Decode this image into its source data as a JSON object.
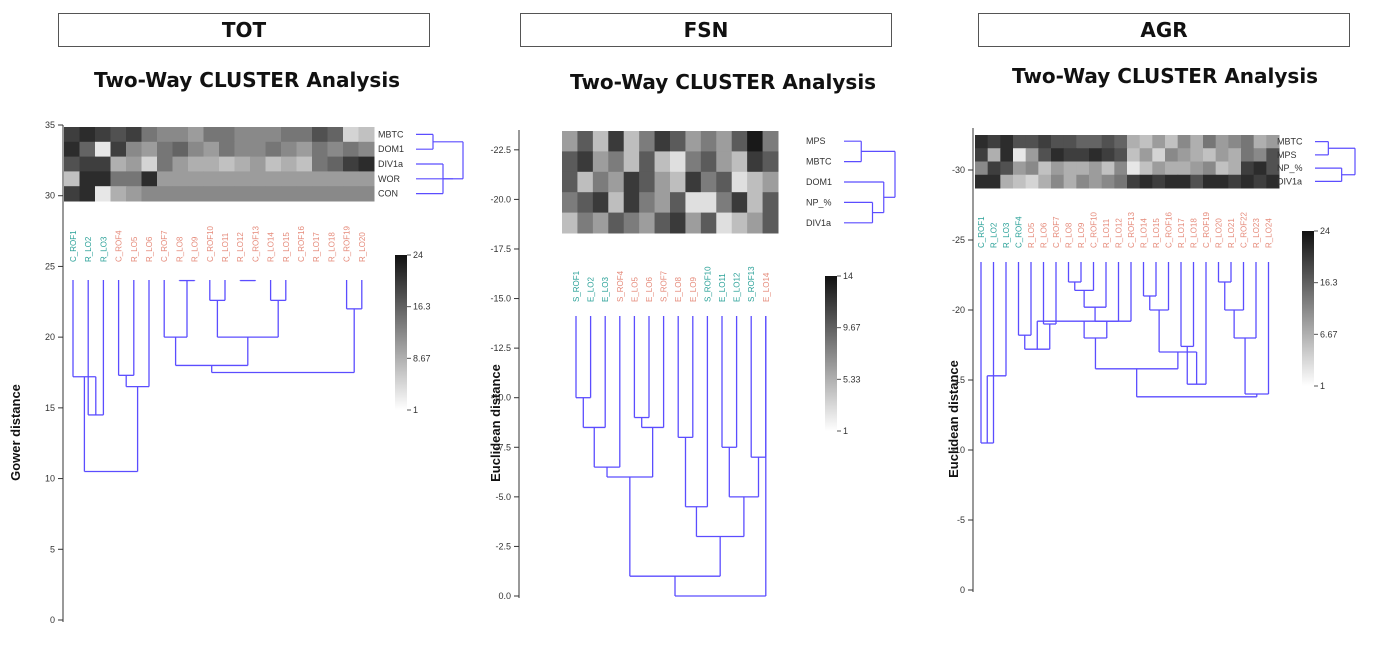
{
  "panels": [
    {
      "header": "TOT",
      "subtitle": "Two-Way CLUSTER Analysis"
    },
    {
      "header": "FSN",
      "subtitle": "Two-Way CLUSTER Analysis"
    },
    {
      "header": "AGR",
      "subtitle": "Two-Way CLUSTER Analysis"
    }
  ],
  "chart_data": [
    {
      "type": "heatmap",
      "title": "Two-Way CLUSTER Analysis",
      "ylabel": "Gower distance",
      "yticks": [
        0,
        5,
        10,
        15,
        20,
        25,
        30,
        35
      ],
      "ylim": [
        0,
        35
      ],
      "variables": [
        "MBTC",
        "DOM1",
        "DIV1a",
        "WOR",
        "CON"
      ],
      "n_samples": 20,
      "colorbar": {
        "min": 1,
        "max": 24,
        "ticks": [
          "24",
          "16.3",
          "8.67",
          "1"
        ]
      },
      "sample_label_colors": {
        "group_a": "#2aa198",
        "group_b": "#e58a7a"
      },
      "heat": [
        [
          20,
          22,
          20,
          18,
          20,
          14,
          12,
          12,
          10,
          14,
          14,
          12,
          12,
          12,
          14,
          14,
          18,
          16,
          4,
          6
        ],
        [
          22,
          16,
          2,
          20,
          12,
          10,
          14,
          16,
          12,
          10,
          14,
          12,
          12,
          14,
          12,
          10,
          14,
          12,
          14,
          12
        ],
        [
          18,
          20,
          20,
          8,
          10,
          4,
          14,
          10,
          8,
          8,
          6,
          8,
          10,
          6,
          8,
          6,
          14,
          16,
          20,
          22
        ],
        [
          6,
          22,
          22,
          14,
          14,
          22,
          10,
          10,
          10,
          10,
          10,
          10,
          10,
          10,
          10,
          10,
          10,
          10,
          10,
          10
        ],
        [
          20,
          22,
          2,
          8,
          10,
          12,
          12,
          12,
          12,
          12,
          12,
          12,
          12,
          12,
          12,
          12,
          12,
          12,
          12,
          12
        ]
      ],
      "dendrogram_merges": [
        [
          7,
          8,
          24
        ],
        [
          9,
          10,
          22.6
        ],
        [
          11,
          12,
          24
        ],
        [
          13,
          14,
          22.6
        ],
        [
          18,
          19,
          22
        ],
        [
          6,
          20,
          20
        ],
        [
          21,
          23,
          20
        ],
        [
          17,
          27,
          24
        ],
        [
          3,
          4,
          17.3
        ],
        [
          25,
          26,
          18
        ],
        [
          1,
          2,
          14.5
        ],
        [
          24,
          29,
          17.5
        ],
        [
          5,
          28,
          16.5
        ],
        [
          31,
          33,
          13.5
        ],
        [
          0,
          30,
          17.2
        ],
        [
          32,
          34,
          10.5
        ],
        [
          36,
          38,
          5.2
        ],
        [
          35,
          39,
          0
        ]
      ],
      "dendrogram_merge_ids_start": 20,
      "variable_merges": [
        [
          0,
          1,
          1
        ],
        [
          2,
          4,
          2
        ],
        [
          3,
          6,
          3
        ],
        [
          5,
          7,
          4
        ]
      ]
    },
    {
      "type": "heatmap",
      "title": "Two-Way CLUSTER Analysis",
      "ylabel": "Euclidean distance",
      "yticks": [
        0.0,
        2.5,
        5.0,
        7.5,
        10.0,
        12.5,
        15.0,
        17.5,
        20.0,
        22.5
      ],
      "ytick_labels": [
        "0.0",
        "-2.5",
        "-5.0",
        "-7.5",
        "-10.0",
        "-12.5",
        "-15.0",
        "-17.5",
        "-20.0",
        "-22.5"
      ],
      "ylim": [
        0,
        23.5
      ],
      "variables": [
        "MPS",
        "MBTC",
        "DOM1",
        "NP_%",
        "DIV1a"
      ],
      "n_samples": 14,
      "colorbar": {
        "min": 1,
        "max": 14,
        "ticks": [
          "14",
          "9.67",
          "5.33",
          "1"
        ]
      },
      "sample_label_colors": {
        "group_a": "#2aa198",
        "group_b": "#e58a7a"
      },
      "heat": [
        [
          6,
          10,
          4,
          12,
          4,
          8,
          12,
          10,
          6,
          8,
          6,
          10,
          14,
          8
        ],
        [
          10,
          12,
          6,
          8,
          4,
          10,
          4,
          2,
          8,
          10,
          6,
          4,
          12,
          10
        ],
        [
          10,
          4,
          8,
          6,
          12,
          10,
          6,
          4,
          12,
          8,
          10,
          2,
          4,
          6
        ],
        [
          8,
          10,
          12,
          4,
          12,
          8,
          6,
          10,
          2,
          2,
          8,
          12,
          4,
          10
        ],
        [
          4,
          8,
          6,
          10,
          8,
          6,
          10,
          12,
          6,
          10,
          2,
          4,
          6,
          10
        ]
      ],
      "dendrogram_merges": [
        [
          0,
          1,
          10.0
        ],
        [
          2,
          14,
          8.5
        ],
        [
          3,
          15,
          6.5
        ],
        [
          4,
          5,
          9.0
        ],
        [
          6,
          17,
          8.5
        ],
        [
          16,
          18,
          6.0
        ],
        [
          7,
          8,
          8.0
        ],
        [
          9,
          20,
          4.5
        ],
        [
          10,
          11,
          7.5
        ],
        [
          12,
          13,
          7.0
        ],
        [
          22,
          23,
          5.0
        ],
        [
          21,
          24,
          3.0
        ],
        [
          19,
          25,
          1.0
        ],
        [
          26,
          13,
          0
        ]
      ],
      "dendrogram_merge_ids_start": 14,
      "variable_merges": [
        [
          0,
          1,
          1
        ],
        [
          3,
          4,
          2
        ],
        [
          2,
          6,
          3
        ],
        [
          5,
          7,
          4
        ]
      ]
    },
    {
      "type": "heatmap",
      "title": "Two-Way CLUSTER Analysis",
      "ylabel": "Euclidean distance",
      "yticks": [
        0,
        5,
        10,
        15,
        20,
        25,
        30
      ],
      "ytick_labels": [
        "0",
        "-5",
        "-10",
        "-15",
        "-20",
        "-25",
        "-30"
      ],
      "ylim": [
        0,
        33
      ],
      "variables": [
        "MBTC",
        "MPS",
        "NP_%",
        "DIV1a"
      ],
      "n_samples": 24,
      "colorbar": {
        "min": 1,
        "max": 24,
        "ticks": [
          "24",
          "16.3",
          "6.67",
          "1"
        ]
      },
      "sample_label_colors": {
        "group_a": "#2aa198",
        "group_b": "#e58a7a"
      },
      "heat": [
        [
          22,
          20,
          22,
          18,
          18,
          20,
          18,
          18,
          16,
          16,
          18,
          16,
          8,
          6,
          10,
          6,
          12,
          8,
          14,
          10,
          12,
          14,
          8,
          10
        ],
        [
          20,
          8,
          22,
          2,
          10,
          18,
          22,
          20,
          20,
          22,
          20,
          18,
          6,
          10,
          4,
          12,
          10,
          8,
          6,
          10,
          8,
          14,
          12,
          18
        ],
        [
          12,
          20,
          18,
          10,
          12,
          6,
          10,
          8,
          8,
          10,
          6,
          12,
          2,
          6,
          10,
          8,
          8,
          10,
          12,
          6,
          8,
          20,
          22,
          18
        ],
        [
          22,
          22,
          8,
          6,
          4,
          8,
          12,
          8,
          12,
          10,
          12,
          14,
          20,
          22,
          20,
          22,
          22,
          18,
          22,
          22,
          20,
          22,
          20,
          22
        ]
      ],
      "dendrogram_merges": [
        [
          0,
          1,
          10.5
        ],
        [
          24,
          2,
          15.3
        ],
        [
          3,
          4,
          18.2
        ],
        [
          5,
          6,
          19.0
        ],
        [
          26,
          27,
          17.2
        ],
        [
          7,
          8,
          22.0
        ],
        [
          29,
          9,
          21.4
        ],
        [
          30,
          10,
          20.2
        ],
        [
          31,
          11,
          19.2
        ],
        [
          28,
          12,
          19.2
        ],
        [
          33,
          32,
          18.0
        ],
        [
          13,
          14,
          21.0
        ],
        [
          35,
          15,
          20.0
        ],
        [
          16,
          17,
          17.4
        ],
        [
          37,
          18,
          14.7
        ],
        [
          36,
          38,
          17.0
        ],
        [
          34,
          39,
          15.8
        ],
        [
          19,
          20,
          22.0
        ],
        [
          41,
          21,
          20.0
        ],
        [
          42,
          22,
          18.0
        ],
        [
          43,
          23,
          14.0
        ],
        [
          40,
          44,
          13.8
        ],
        [
          45,
          46,
          12.8
        ],
        [
          25,
          47,
          1.2
        ]
      ],
      "dendrogram_merge_ids_start": 24,
      "variable_merges": [
        [
          0,
          1,
          1
        ],
        [
          2,
          3,
          2
        ],
        [
          4,
          5,
          3
        ]
      ]
    }
  ]
}
